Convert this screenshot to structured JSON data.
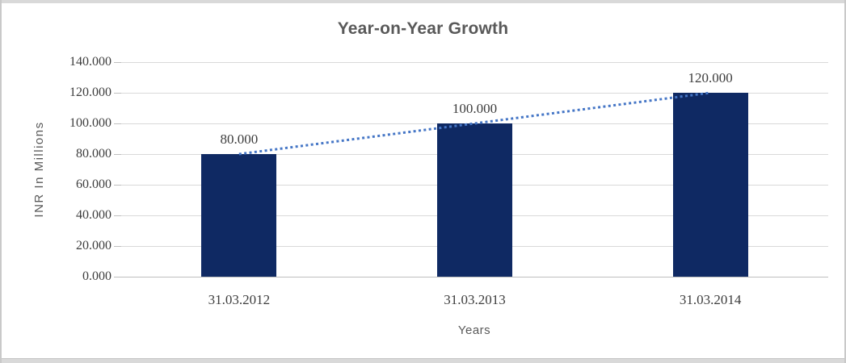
{
  "chart_data": {
    "type": "bar",
    "title": "Year-on-Year Growth",
    "xlabel": "Years",
    "ylabel": "INR In Millions",
    "categories": [
      "31.03.2012",
      "31.03.2013",
      "31.03.2014"
    ],
    "values": [
      80000,
      100000,
      120000
    ],
    "data_labels": [
      "80.000",
      "100.000",
      "120.000"
    ],
    "y_tick_labels": [
      "0.000",
      "20.000",
      "40.000",
      "60.000",
      "80.000",
      "100.000",
      "120.000",
      "140.000"
    ],
    "y_tick_values": [
      0,
      20000,
      40000,
      60000,
      80000,
      100000,
      120000,
      140000
    ],
    "ylim": [
      0,
      140000
    ],
    "grid": true,
    "legend": "none",
    "colors": {
      "bar": "#0f2963",
      "trendline": "#4576c6",
      "gridline": "#d9d9d9",
      "axis_line": "#bfbfbf",
      "title_text": "#595959",
      "tick_text": "#3d3d3d",
      "frame_band": "#d9d9d9"
    },
    "trendline": {
      "type": "linear",
      "style": "dotted",
      "from_value": 80000,
      "to_value": 120000
    }
  }
}
